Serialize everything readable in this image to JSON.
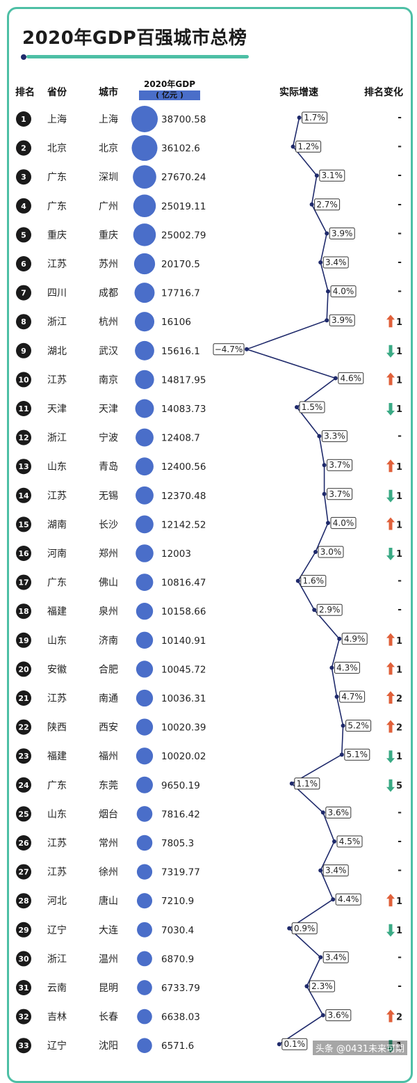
{
  "title": "2020年GDP百强城市总榜",
  "headers": {
    "rank": "排名",
    "province": "省份",
    "city": "城市",
    "gdp": "2020年GDP",
    "gdp_unit": "( 亿元 )",
    "growth": "实际增速",
    "change": "排名变化"
  },
  "watermark": "头条 @0431未来可期",
  "colors": {
    "accent": "#4dbfa5",
    "bubble": "#4a6ec9",
    "line": "#1f2a6b",
    "up": "#e0603a",
    "down": "#3aaa85"
  },
  "chart_data": {
    "type": "table",
    "columns": [
      "rank",
      "province",
      "city",
      "gdp",
      "growth",
      "change"
    ],
    "rows": [
      {
        "rank": 1,
        "province": "上海",
        "city": "上海",
        "gdp": "38700.58",
        "growth": 1.7,
        "growth_label": "1.7%",
        "change_dir": "none",
        "change": "-"
      },
      {
        "rank": 2,
        "province": "北京",
        "city": "北京",
        "gdp": "36102.6",
        "growth": 1.2,
        "growth_label": "1.2%",
        "change_dir": "none",
        "change": "-"
      },
      {
        "rank": 3,
        "province": "广东",
        "city": "深圳",
        "gdp": "27670.24",
        "growth": 3.1,
        "growth_label": "3.1%",
        "change_dir": "none",
        "change": "-"
      },
      {
        "rank": 4,
        "province": "广东",
        "city": "广州",
        "gdp": "25019.11",
        "growth": 2.7,
        "growth_label": "2.7%",
        "change_dir": "none",
        "change": "-"
      },
      {
        "rank": 5,
        "province": "重庆",
        "city": "重庆",
        "gdp": "25002.79",
        "growth": 3.9,
        "growth_label": "3.9%",
        "change_dir": "none",
        "change": "-"
      },
      {
        "rank": 6,
        "province": "江苏",
        "city": "苏州",
        "gdp": "20170.5",
        "growth": 3.4,
        "growth_label": "3.4%",
        "change_dir": "none",
        "change": "-"
      },
      {
        "rank": 7,
        "province": "四川",
        "city": "成都",
        "gdp": "17716.7",
        "growth": 4.0,
        "growth_label": "4.0%",
        "change_dir": "none",
        "change": "-"
      },
      {
        "rank": 8,
        "province": "浙江",
        "city": "杭州",
        "gdp": "16106",
        "growth": 3.9,
        "growth_label": "3.9%",
        "change_dir": "up",
        "change": "1"
      },
      {
        "rank": 9,
        "province": "湖北",
        "city": "武汉",
        "gdp": "15616.1",
        "growth": -4.7,
        "growth_label": "−4.7%",
        "change_dir": "down",
        "change": "1"
      },
      {
        "rank": 10,
        "province": "江苏",
        "city": "南京",
        "gdp": "14817.95",
        "growth": 4.6,
        "growth_label": "4.6%",
        "change_dir": "up",
        "change": "1"
      },
      {
        "rank": 11,
        "province": "天津",
        "city": "天津",
        "gdp": "14083.73",
        "growth": 1.5,
        "growth_label": "1.5%",
        "change_dir": "down",
        "change": "1"
      },
      {
        "rank": 12,
        "province": "浙江",
        "city": "宁波",
        "gdp": "12408.7",
        "growth": 3.3,
        "growth_label": "3.3%",
        "change_dir": "none",
        "change": "-"
      },
      {
        "rank": 13,
        "province": "山东",
        "city": "青岛",
        "gdp": "12400.56",
        "growth": 3.7,
        "growth_label": "3.7%",
        "change_dir": "up",
        "change": "1"
      },
      {
        "rank": 14,
        "province": "江苏",
        "city": "无锡",
        "gdp": "12370.48",
        "growth": 3.7,
        "growth_label": "3.7%",
        "change_dir": "down",
        "change": "1"
      },
      {
        "rank": 15,
        "province": "湖南",
        "city": "长沙",
        "gdp": "12142.52",
        "growth": 4.0,
        "growth_label": "4.0%",
        "change_dir": "up",
        "change": "1"
      },
      {
        "rank": 16,
        "province": "河南",
        "city": "郑州",
        "gdp": "12003",
        "growth": 3.0,
        "growth_label": "3.0%",
        "change_dir": "down",
        "change": "1"
      },
      {
        "rank": 17,
        "province": "广东",
        "city": "佛山",
        "gdp": "10816.47",
        "growth": 1.6,
        "growth_label": "1.6%",
        "change_dir": "none",
        "change": "-"
      },
      {
        "rank": 18,
        "province": "福建",
        "city": "泉州",
        "gdp": "10158.66",
        "growth": 2.9,
        "growth_label": "2.9%",
        "change_dir": "none",
        "change": "-"
      },
      {
        "rank": 19,
        "province": "山东",
        "city": "济南",
        "gdp": "10140.91",
        "growth": 4.9,
        "growth_label": "4.9%",
        "change_dir": "up",
        "change": "1"
      },
      {
        "rank": 20,
        "province": "安徽",
        "city": "合肥",
        "gdp": "10045.72",
        "growth": 4.3,
        "growth_label": "4.3%",
        "change_dir": "up",
        "change": "1"
      },
      {
        "rank": 21,
        "province": "江苏",
        "city": "南通",
        "gdp": "10036.31",
        "growth": 4.7,
        "growth_label": "4.7%",
        "change_dir": "up",
        "change": "2"
      },
      {
        "rank": 22,
        "province": "陕西",
        "city": "西安",
        "gdp": "10020.39",
        "growth": 5.2,
        "growth_label": "5.2%",
        "change_dir": "up",
        "change": "2"
      },
      {
        "rank": 23,
        "province": "福建",
        "city": "福州",
        "gdp": "10020.02",
        "growth": 5.1,
        "growth_label": "5.1%",
        "change_dir": "down",
        "change": "1"
      },
      {
        "rank": 24,
        "province": "广东",
        "city": "东莞",
        "gdp": "9650.19",
        "growth": 1.1,
        "growth_label": "1.1%",
        "change_dir": "down",
        "change": "5"
      },
      {
        "rank": 25,
        "province": "山东",
        "city": "烟台",
        "gdp": "7816.42",
        "growth": 3.6,
        "growth_label": "3.6%",
        "change_dir": "none",
        "change": "-"
      },
      {
        "rank": 26,
        "province": "江苏",
        "city": "常州",
        "gdp": "7805.3",
        "growth": 4.5,
        "growth_label": "4.5%",
        "change_dir": "none",
        "change": "-"
      },
      {
        "rank": 27,
        "province": "江苏",
        "city": "徐州",
        "gdp": "7319.77",
        "growth": 3.4,
        "growth_label": "3.4%",
        "change_dir": "none",
        "change": "-"
      },
      {
        "rank": 28,
        "province": "河北",
        "city": "唐山",
        "gdp": "7210.9",
        "growth": 4.4,
        "growth_label": "4.4%",
        "change_dir": "up",
        "change": "1"
      },
      {
        "rank": 29,
        "province": "辽宁",
        "city": "大连",
        "gdp": "7030.4",
        "growth": 0.9,
        "growth_label": "0.9%",
        "change_dir": "down",
        "change": "1"
      },
      {
        "rank": 30,
        "province": "浙江",
        "city": "温州",
        "gdp": "6870.9",
        "growth": 3.4,
        "growth_label": "3.4%",
        "change_dir": "none",
        "change": "-"
      },
      {
        "rank": 31,
        "province": "云南",
        "city": "昆明",
        "gdp": "6733.79",
        "growth": 2.3,
        "growth_label": "2.3%",
        "change_dir": "none",
        "change": "-"
      },
      {
        "rank": 32,
        "province": "吉林",
        "city": "长春",
        "gdp": "6638.03",
        "growth": 3.6,
        "growth_label": "3.6%",
        "change_dir": "up",
        "change": "2"
      },
      {
        "rank": 33,
        "province": "辽宁",
        "city": "沈阳",
        "gdp": "6571.6",
        "growth": 0.1,
        "growth_label": "0.1%",
        "change_dir": "down",
        "change": "1"
      }
    ]
  }
}
